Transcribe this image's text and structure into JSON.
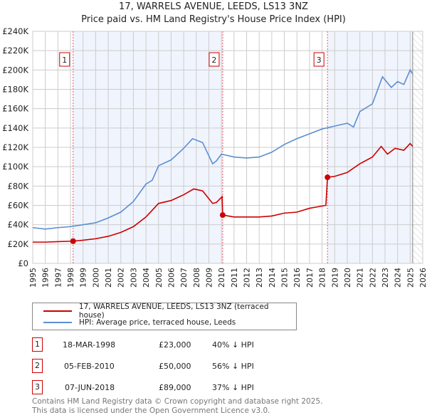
{
  "chart_data": {
    "type": "line",
    "title": "17, WARRELS AVENUE, LEEDS, LS13 3NZ",
    "subtitle": "Price paid vs. HM Land Registry's House Price Index (HPI)",
    "xlim": [
      1995,
      2026
    ],
    "ylim": [
      0,
      240000
    ],
    "x_ticks": [
      "1995",
      "1996",
      "1997",
      "1998",
      "1999",
      "2000",
      "2001",
      "2002",
      "2003",
      "2004",
      "2005",
      "2006",
      "2007",
      "2008",
      "2009",
      "2010",
      "2011",
      "2012",
      "2013",
      "2014",
      "2015",
      "2016",
      "2017",
      "2018",
      "2019",
      "2020",
      "2021",
      "2022",
      "2023",
      "2024",
      "2025",
      "2026"
    ],
    "y_ticks": [
      {
        "v": 0,
        "label": "£0"
      },
      {
        "v": 20000,
        "label": "£20K"
      },
      {
        "v": 40000,
        "label": "£40K"
      },
      {
        "v": 60000,
        "label": "£60K"
      },
      {
        "v": 80000,
        "label": "£80K"
      },
      {
        "v": 100000,
        "label": "£100K"
      },
      {
        "v": 120000,
        "label": "£120K"
      },
      {
        "v": 140000,
        "label": "£140K"
      },
      {
        "v": 160000,
        "label": "£160K"
      },
      {
        "v": 180000,
        "label": "£180K"
      },
      {
        "v": 200000,
        "label": "£200K"
      },
      {
        "v": 220000,
        "label": "£220K"
      },
      {
        "v": 240000,
        "label": "£240K"
      }
    ],
    "grid": true,
    "future_hatch_from": 2025.2,
    "series": [
      {
        "name": "17, WARRELS AVENUE, LEEDS, LS13 3NZ (terraced house)",
        "color": "#cc0000",
        "x": [
          1995,
          1996,
          1997,
          1998.21,
          1999,
          2000,
          2001,
          2002,
          2003,
          2004,
          2005,
          2006,
          2007,
          2007.8,
          2008.5,
          2009.3,
          2009.6,
          2010.05,
          2010.1,
          2011,
          2012,
          2013,
          2014,
          2015,
          2016,
          2017,
          2018.3,
          2018.43,
          2019,
          2020,
          2021,
          2022,
          2022.7,
          2023.2,
          2023.8,
          2024.5,
          2025,
          2025.2
        ],
        "y": [
          22000,
          22000,
          22500,
          23000,
          24000,
          25500,
          28000,
          32000,
          38000,
          48000,
          62000,
          65000,
          71000,
          77000,
          75000,
          62000,
          63000,
          69000,
          50000,
          48000,
          48000,
          48000,
          49000,
          52000,
          53000,
          57000,
          60000,
          89000,
          90000,
          94000,
          103000,
          110000,
          121000,
          113000,
          119000,
          117000,
          124000,
          121000
        ]
      },
      {
        "name": "HPI: Average price, terraced house, Leeds",
        "color": "#5b8fd0",
        "x": [
          1995,
          1996,
          1997,
          1998,
          1999,
          2000,
          2001,
          2002,
          2003,
          2004,
          2004.5,
          2005,
          2006,
          2007,
          2007.7,
          2008.5,
          2009.3,
          2009.6,
          2010,
          2011,
          2012,
          2013,
          2014,
          2015,
          2016,
          2017,
          2018,
          2019,
          2020,
          2020.5,
          2021,
          2022,
          2022.8,
          2023.5,
          2024,
          2024.5,
          2025,
          2025.2
        ],
        "y": [
          37000,
          35500,
          37000,
          38000,
          40000,
          42000,
          47000,
          53000,
          64000,
          82000,
          86000,
          101000,
          107000,
          119000,
          129000,
          125000,
          103000,
          106000,
          113000,
          110000,
          109000,
          110000,
          115000,
          123000,
          129000,
          134000,
          139000,
          142000,
          145000,
          141000,
          157000,
          165000,
          193000,
          182000,
          188000,
          185000,
          200000,
          196000
        ]
      }
    ],
    "sales": [
      {
        "n": "1",
        "x": 1998.21,
        "y": 23000
      },
      {
        "n": "2",
        "x": 2010.1,
        "y": 50000
      },
      {
        "n": "3",
        "x": 2018.43,
        "y": 89000
      }
    ]
  },
  "legend": {
    "property": "17, WARRELS AVENUE, LEEDS, LS13 3NZ (terraced house)",
    "hpi": "HPI: Average price, terraced house, Leeds"
  },
  "transactions": [
    {
      "n": "1",
      "date": "18-MAR-1998",
      "price": "£23,000",
      "hpi": "40% ↓ HPI"
    },
    {
      "n": "2",
      "date": "05-FEB-2010",
      "price": "£50,000",
      "hpi": "56% ↓ HPI"
    },
    {
      "n": "3",
      "date": "07-JUN-2018",
      "price": "£89,000",
      "hpi": "37% ↓ HPI"
    }
  ],
  "footer": {
    "line1": "Contains HM Land Registry data © Crown copyright and database right 2025.",
    "line2": "This data is licensed under the Open Government Licence v3.0."
  }
}
